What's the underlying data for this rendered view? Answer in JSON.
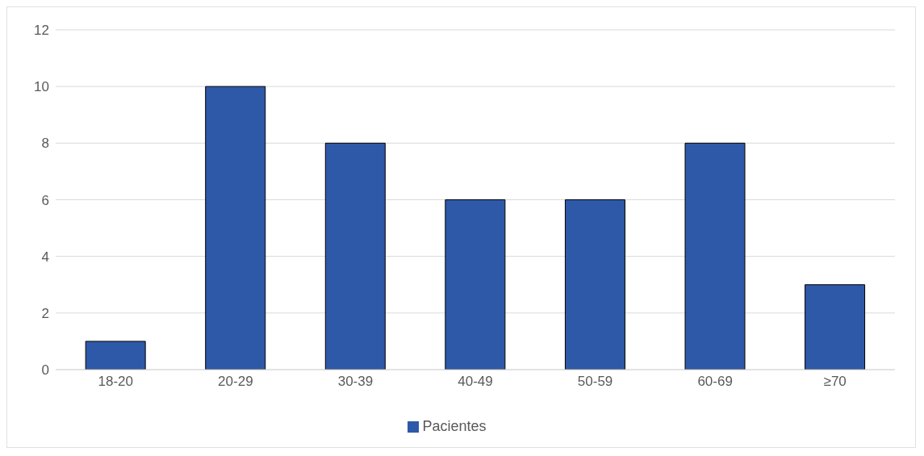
{
  "chart_data": {
    "type": "bar",
    "categories": [
      "18-20",
      "20-29",
      "30-39",
      "40-49",
      "50-59",
      "60-69",
      "≥70"
    ],
    "series": [
      {
        "name": "Pacientes",
        "color": "#2e59a8",
        "values": [
          1,
          10,
          8,
          6,
          6,
          8,
          3
        ]
      }
    ],
    "ylim": [
      0,
      12
    ],
    "yticks": [
      0,
      2,
      4,
      6,
      8,
      10,
      12
    ],
    "grid": "y",
    "legend": "bottom"
  }
}
